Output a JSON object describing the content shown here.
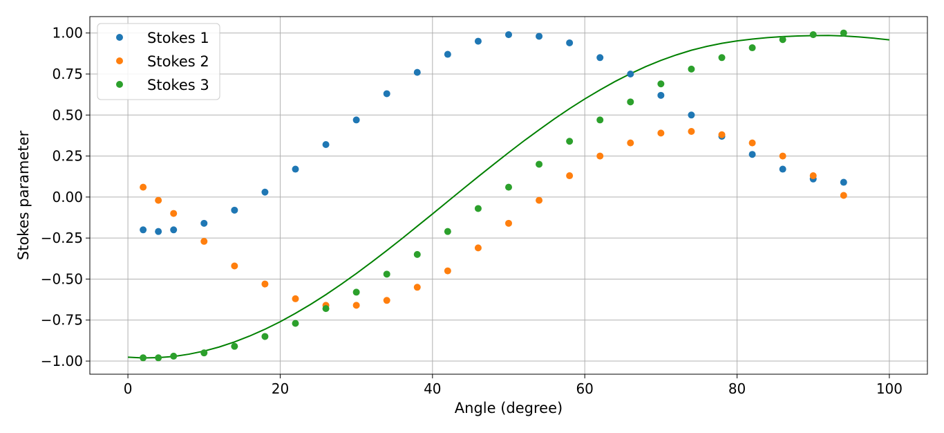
{
  "chart_data": {
    "type": "scatter",
    "title": "",
    "xlabel": "Angle (degree)",
    "ylabel": "Stokes parameter",
    "xlim": [
      -5,
      105
    ],
    "ylim": [
      -1.08,
      1.1
    ],
    "grid": true,
    "legend_position": "top-left",
    "x_ticks": [
      0,
      20,
      40,
      60,
      80,
      100
    ],
    "x_tick_labels": [
      "0",
      "20",
      "40",
      "60",
      "80",
      "100"
    ],
    "y_ticks": [
      1.0,
      0.75,
      0.5,
      0.25,
      0.0,
      -0.25,
      -0.5,
      -0.75,
      -1.0
    ],
    "y_tick_labels": [
      "1.00",
      "0.75",
      "0.50",
      "0.25",
      "0.00",
      "−0.25",
      "−0.50",
      "−0.75",
      "−1.00"
    ],
    "series": [
      {
        "name": "Stokes 1",
        "color": "#1f77b4",
        "marker": "circle",
        "x": [
          2,
          4,
          6,
          10,
          14,
          18,
          22,
          26,
          30,
          34,
          38,
          42,
          46,
          50,
          54,
          58,
          62,
          66,
          70,
          74,
          78,
          82,
          86,
          90,
          94
        ],
        "y": [
          -0.2,
          -0.21,
          -0.2,
          -0.16,
          -0.08,
          0.03,
          0.17,
          0.32,
          0.47,
          0.63,
          0.76,
          0.87,
          0.95,
          0.99,
          0.98,
          0.94,
          0.85,
          0.75,
          0.62,
          0.5,
          0.37,
          0.26,
          0.17,
          0.11,
          0.09
        ]
      },
      {
        "name": "Stokes 2",
        "color": "#ff7f0e",
        "marker": "circle",
        "x": [
          2,
          4,
          6,
          10,
          14,
          18,
          22,
          26,
          30,
          34,
          38,
          42,
          46,
          50,
          54,
          58,
          62,
          66,
          70,
          74,
          78,
          82,
          86,
          90,
          94
        ],
        "y": [
          0.06,
          -0.02,
          -0.1,
          -0.27,
          -0.42,
          -0.53,
          -0.62,
          -0.66,
          -0.66,
          -0.63,
          -0.55,
          -0.45,
          -0.31,
          -0.16,
          -0.02,
          0.13,
          0.25,
          0.33,
          0.39,
          0.4,
          0.38,
          0.33,
          0.25,
          0.13,
          0.01
        ]
      },
      {
        "name": "Stokes 3",
        "color": "#2ca02c",
        "marker": "circle",
        "x": [
          2,
          4,
          6,
          10,
          14,
          18,
          22,
          26,
          30,
          34,
          38,
          42,
          46,
          50,
          54,
          58,
          62,
          66,
          70,
          74,
          78,
          82,
          86,
          90,
          94
        ],
        "y": [
          -0.98,
          -0.98,
          -0.97,
          -0.95,
          -0.91,
          -0.85,
          -0.77,
          -0.68,
          -0.58,
          -0.47,
          -0.35,
          -0.21,
          -0.07,
          0.06,
          0.2,
          0.34,
          0.47,
          0.58,
          0.69,
          0.78,
          0.85,
          0.91,
          0.96,
          0.99,
          1.0
        ]
      }
    ],
    "curve": {
      "color": "#008000",
      "x": [
        0,
        2,
        4,
        6,
        8,
        10,
        12,
        14,
        16,
        18,
        20,
        22,
        24,
        26,
        28,
        30,
        32,
        34,
        36,
        38,
        40,
        42,
        44,
        46,
        48,
        50,
        52,
        54,
        56,
        58,
        60,
        62,
        64,
        66,
        68,
        70,
        72,
        74,
        76,
        78,
        80,
        82,
        84,
        86,
        88,
        90,
        92,
        94,
        96,
        98,
        100
      ],
      "y": [
        -0.976,
        -0.981,
        -0.979,
        -0.972,
        -0.958,
        -0.939,
        -0.914,
        -0.883,
        -0.847,
        -0.806,
        -0.76,
        -0.709,
        -0.654,
        -0.595,
        -0.532,
        -0.466,
        -0.397,
        -0.326,
        -0.253,
        -0.178,
        -0.103,
        -0.027,
        0.049,
        0.124,
        0.198,
        0.271,
        0.342,
        0.41,
        0.476,
        0.539,
        0.598,
        0.653,
        0.705,
        0.752,
        0.795,
        0.833,
        0.866,
        0.895,
        0.918,
        0.937,
        0.952,
        0.963,
        0.972,
        0.978,
        0.982,
        0.984,
        0.985,
        0.982,
        0.976,
        0.968,
        0.958
      ]
    }
  }
}
